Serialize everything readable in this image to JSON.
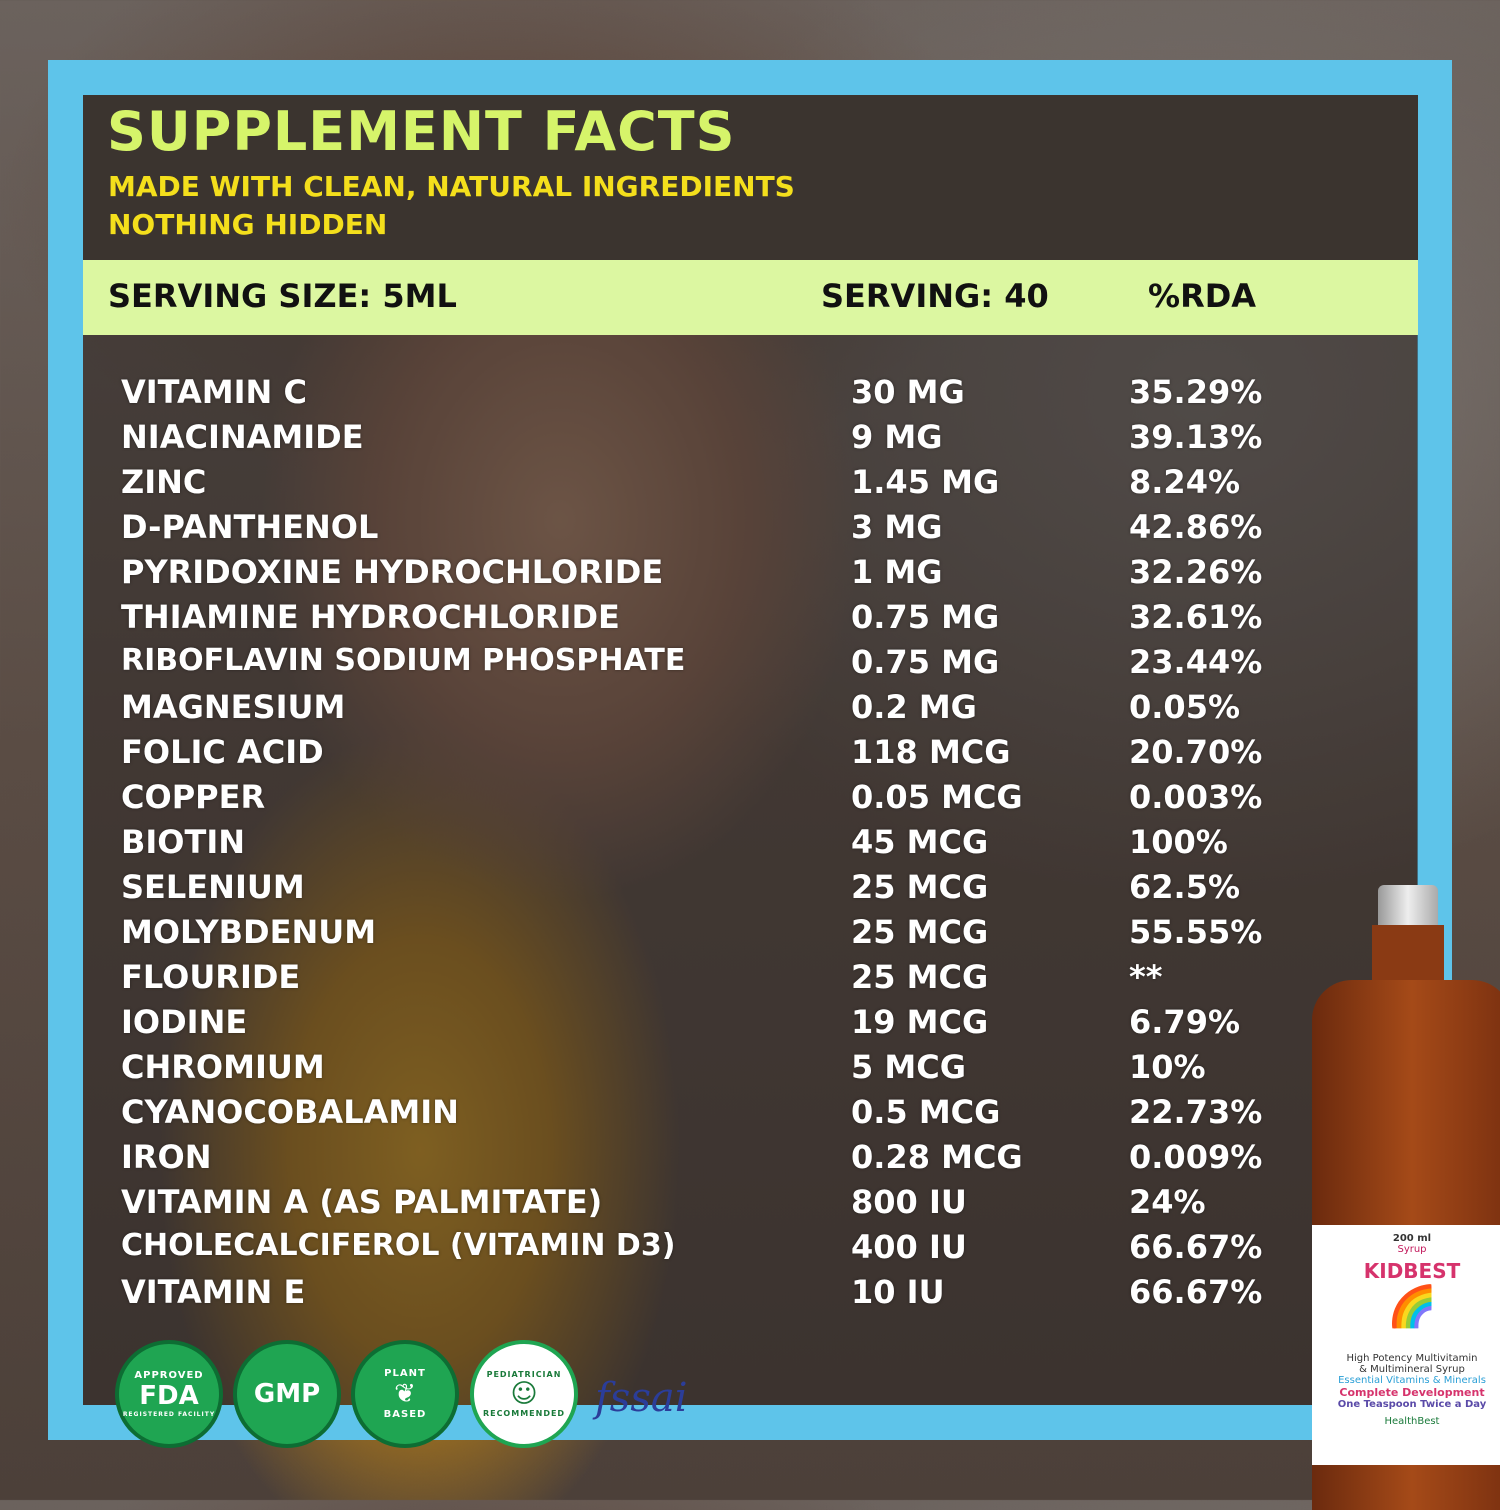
{
  "header": {
    "title": "SUPPLEMENT FACTS",
    "subtitle_1": "MADE WITH CLEAN, NATURAL INGREDIENTS",
    "subtitle_2": "NOTHING HIDDEN"
  },
  "band": {
    "serving_size": "SERVING SIZE: 5ML",
    "servings": "SERVING: 40",
    "rda": "%RDA"
  },
  "nutrients": [
    [
      "VITAMIN C",
      "30 MG",
      "35.29%"
    ],
    [
      "NIACINAMIDE",
      "9 MG",
      "39.13%"
    ],
    [
      "ZINC",
      "1.45 MG",
      "8.24%"
    ],
    [
      "D-PANTHENOL",
      "3 MG",
      "42.86%"
    ],
    [
      "PYRIDOXINE HYDROCHLORIDE",
      "1 MG",
      "32.26%"
    ],
    [
      "THIAMINE HYDROCHLORIDE",
      "0.75 MG",
      "32.61%"
    ],
    [
      "RIBOFLAVIN SODIUM PHOSPHATE",
      "0.75 MG",
      "23.44%"
    ],
    [
      "MAGNESIUM",
      "0.2 MG",
      "0.05%"
    ],
    [
      "FOLIC ACID",
      "118 MCG",
      "20.70%"
    ],
    [
      "COPPER",
      "0.05 MCG",
      "0.003%"
    ],
    [
      "BIOTIN",
      "45 MCG",
      "100%"
    ],
    [
      "SELENIUM",
      "25 MCG",
      "62.5%"
    ],
    [
      "MOLYBDENUM",
      "25 MCG",
      "55.55%"
    ],
    [
      "FLOURIDE",
      "25 MCG",
      "**"
    ],
    [
      "IODINE",
      "19 MCG",
      "6.79%"
    ],
    [
      "CHROMIUM",
      "5 MCG",
      "10%"
    ],
    [
      "CYANOCOBALAMIN",
      "0.5 MCG",
      "22.73%"
    ],
    [
      "IRON",
      "0.28 MCG",
      "0.009%"
    ],
    [
      "VITAMIN A (AS PALMITATE)",
      "800 IU",
      "24%"
    ],
    [
      "CHOLECALCIFEROL (VITAMIN D3)",
      "400 IU",
      "66.67%"
    ],
    [
      "VITAMIN E",
      "10 IU",
      "66.67%"
    ]
  ],
  "badges": {
    "fda": {
      "top": "APPROVED",
      "main": "FDA",
      "bottom": "REGISTERED FACILITY"
    },
    "gmp": {
      "main": "GMP"
    },
    "plant": {
      "top": "PLANT",
      "bottom": "BASED"
    },
    "pediatrician": {
      "top": "PEDIATRICIAN",
      "bottom": "RECOMMENDED"
    },
    "fssai": "fssai"
  },
  "product": {
    "volume": "200 ml",
    "form": "Syrup",
    "brand": "KIDBEST",
    "line1": "High Potency Multivitamin",
    "line2": "& Multimineral Syrup",
    "line3": "Essential Vitamins & Minerals",
    "line4": "Complete Development",
    "line5": "One Teaspoon Twice a Day",
    "maker": "HealthBest"
  },
  "colors": {
    "frame": "#5ec4ea",
    "title": "#d6f46a",
    "subtitle": "#f4df1c",
    "band": "#dcf7a1",
    "badge_green": "#1fa552"
  }
}
